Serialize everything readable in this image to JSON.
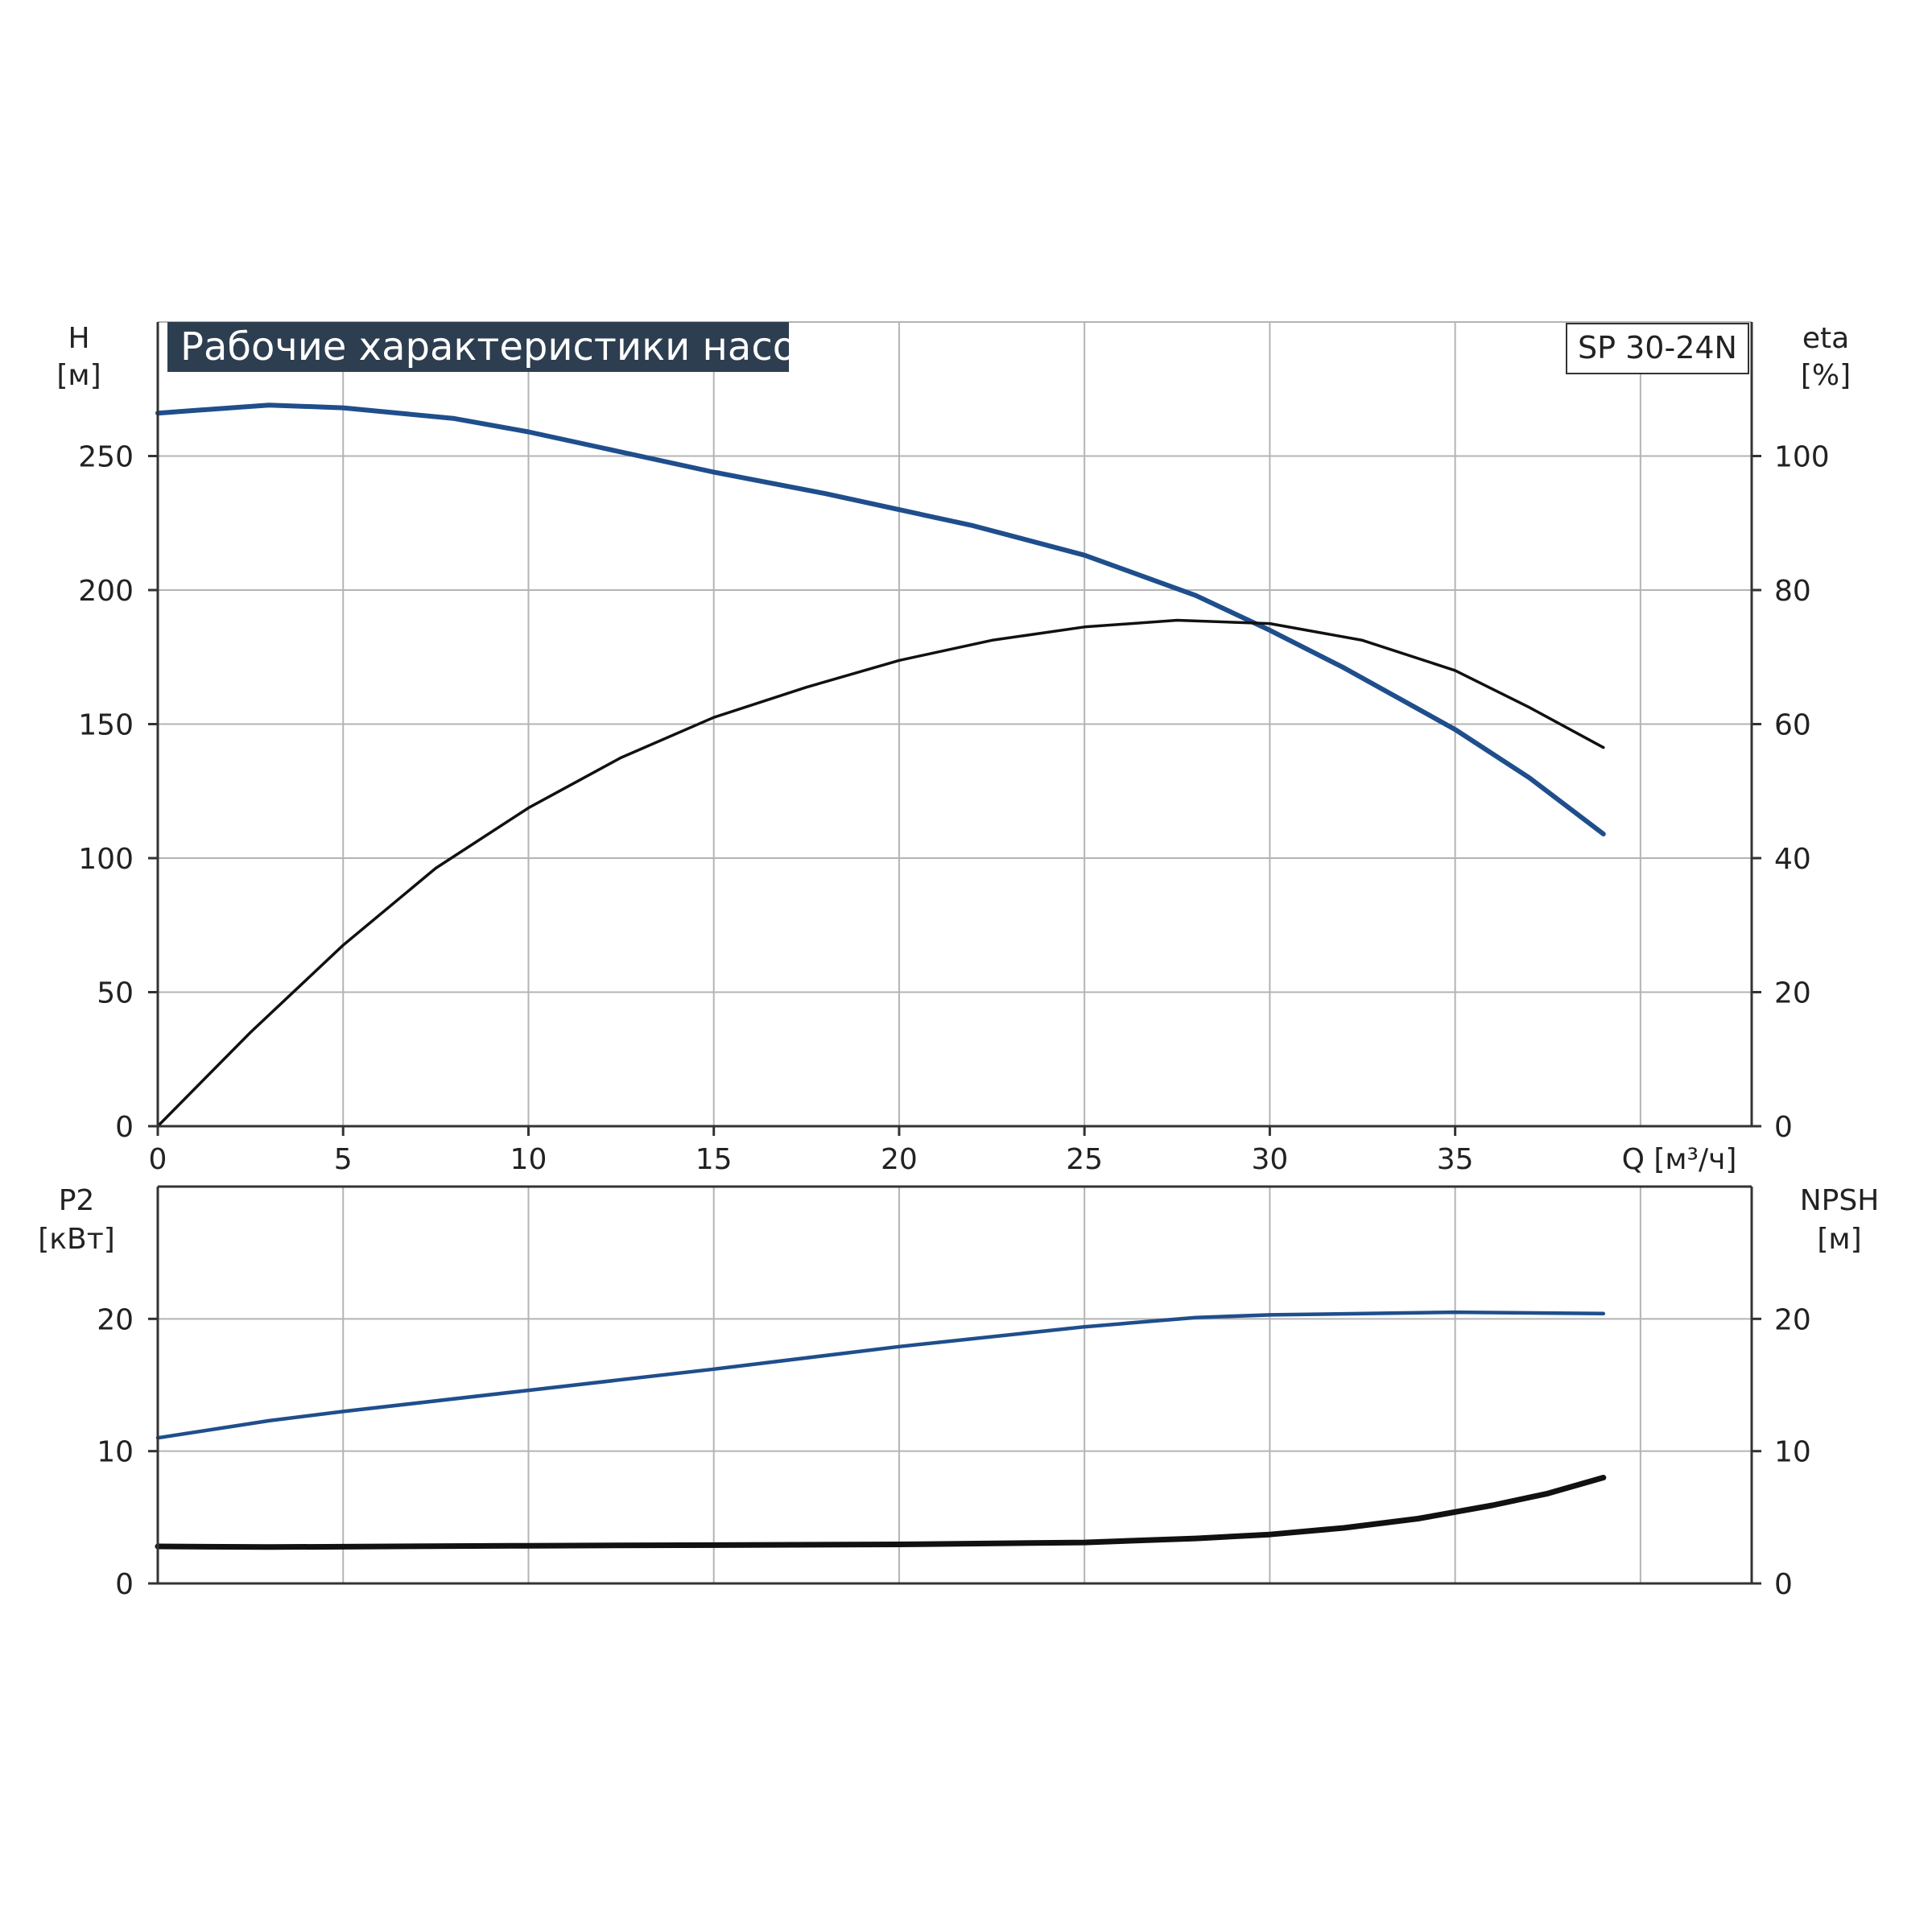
{
  "title": "Рабочие характеристики насоса",
  "model": "SP 30-24N",
  "colors": {
    "title_bg": "#2d3e50",
    "blue": "#1f4e8c",
    "black": "#111111"
  },
  "chart_data": [
    {
      "type": "line",
      "title": "Рабочие характеристики насоса",
      "xlabel": "Q [м³/ч]",
      "x_ticks": [
        0,
        5,
        10,
        15,
        20,
        25,
        30,
        35
      ],
      "xlim": [
        0,
        43
      ],
      "ylabel_left": [
        "H",
        "[м]"
      ],
      "ylim_left": [
        0,
        300
      ],
      "y_ticks_left": [
        0,
        50,
        100,
        150,
        200,
        250
      ],
      "ylabel_right": [
        "eta",
        "[%]"
      ],
      "ylim_right": [
        0,
        120
      ],
      "y_ticks_right": [
        0,
        20,
        40,
        60,
        80,
        100
      ],
      "grid": true,
      "series": [
        {
          "axis": "left",
          "color": "#1f4e8c",
          "points": [
            [
              0,
              266
            ],
            [
              3,
              269
            ],
            [
              5,
              268
            ],
            [
              8,
              264
            ],
            [
              10,
              259
            ],
            [
              12,
              253
            ],
            [
              15,
              244
            ],
            [
              18,
              236
            ],
            [
              20,
              230
            ],
            [
              22,
              224
            ],
            [
              25,
              213
            ],
            [
              28,
              198
            ],
            [
              30,
              185
            ],
            [
              32,
              171
            ],
            [
              35,
              148
            ],
            [
              37,
              130
            ],
            [
              39,
              109
            ]
          ]
        },
        {
          "axis": "right",
          "color": "#111111",
          "points": [
            [
              0,
              0
            ],
            [
              2.5,
              14
            ],
            [
              5,
              27
            ],
            [
              7.5,
              38.5
            ],
            [
              10,
              47.5
            ],
            [
              12.5,
              55
            ],
            [
              15,
              61
            ],
            [
              17.5,
              65.5
            ],
            [
              20,
              69.5
            ],
            [
              22.5,
              72.5
            ],
            [
              25,
              74.5
            ],
            [
              27.5,
              75.5
            ],
            [
              30,
              75
            ],
            [
              32.5,
              72.5
            ],
            [
              35,
              68
            ],
            [
              37,
              62.5
            ],
            [
              39,
              56.5
            ]
          ]
        }
      ]
    },
    {
      "type": "line",
      "xlim": [
        0,
        43
      ],
      "ylabel_left": [
        "P2",
        "[кВт]"
      ],
      "ylim_left": [
        0,
        30
      ],
      "y_ticks_left": [
        0,
        10,
        20
      ],
      "ylabel_right": [
        "NPSH",
        "[м]"
      ],
      "ylim_right": [
        0,
        30
      ],
      "y_ticks_right": [
        0,
        10,
        20
      ],
      "grid": true,
      "series": [
        {
          "axis": "left",
          "color": "#1f4e8c",
          "points": [
            [
              0,
              11
            ],
            [
              3,
              12.3
            ],
            [
              5,
              13
            ],
            [
              10,
              14.6
            ],
            [
              15,
              16.2
            ],
            [
              20,
              17.9
            ],
            [
              25,
              19.4
            ],
            [
              28,
              20.1
            ],
            [
              30,
              20.3
            ],
            [
              35,
              20.5
            ],
            [
              39,
              20.4
            ]
          ]
        },
        {
          "axis": "right",
          "color": "#111111",
          "points": [
            [
              0,
              2.8
            ],
            [
              3,
              2.75
            ],
            [
              10,
              2.85
            ],
            [
              20,
              2.95
            ],
            [
              25,
              3.1
            ],
            [
              28,
              3.4
            ],
            [
              30,
              3.7
            ],
            [
              32,
              4.2
            ],
            [
              34,
              4.9
            ],
            [
              36,
              5.9
            ],
            [
              37.5,
              6.8
            ],
            [
              39,
              8
            ]
          ]
        }
      ]
    }
  ]
}
